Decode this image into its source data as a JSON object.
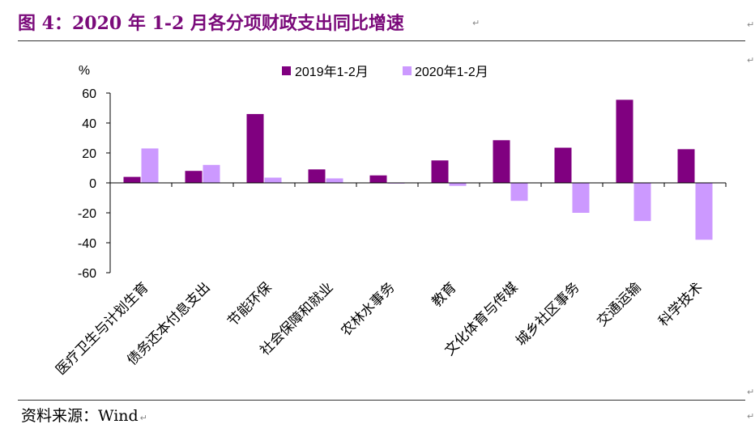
{
  "figure": {
    "title": "图 4：2020 年 1-2 月各分项财政支出同比增速",
    "source": "资料来源：Wind",
    "paragraph_mark": "↵"
  },
  "colors": {
    "title": "#7a0a7a",
    "series_2019": "#800080",
    "series_2020": "#cc99ff",
    "axis": "#000000"
  },
  "chart_data": {
    "type": "bar",
    "title": "",
    "ylabel": "%",
    "xlabel": "",
    "ylim": [
      -60,
      60
    ],
    "yticks": [
      60,
      40,
      20,
      0,
      -20,
      -40,
      -60
    ],
    "grid": false,
    "legend_position": "top-center",
    "categories": [
      "医疗卫生与计划生育",
      "债务还本付息支出",
      "节能环保",
      "社会保障和就业",
      "农林水事务",
      "教育",
      "文化体育与传媒",
      "城乡社区事务",
      "交通运输",
      "科学技术"
    ],
    "series": [
      {
        "name": "2019年1-2月",
        "color": "#800080",
        "values": [
          4,
          8,
          46,
          9,
          5,
          15,
          28.5,
          23.5,
          55.5,
          22.5
        ]
      },
      {
        "name": "2020年1-2月",
        "color": "#cc99ff",
        "values": [
          23,
          12,
          3.5,
          3,
          -0.5,
          -2,
          -12,
          -20,
          -25.5,
          -38
        ]
      }
    ]
  }
}
